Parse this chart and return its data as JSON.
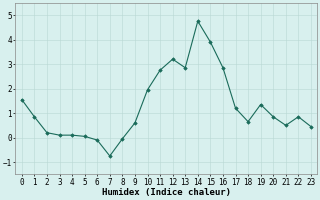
{
  "x": [
    0,
    1,
    2,
    3,
    4,
    5,
    6,
    7,
    8,
    9,
    10,
    11,
    12,
    13,
    14,
    15,
    16,
    17,
    18,
    19,
    20,
    21,
    22,
    23
  ],
  "y": [
    1.55,
    0.85,
    0.2,
    0.1,
    0.1,
    0.05,
    -0.1,
    -0.75,
    -0.05,
    0.6,
    1.95,
    2.75,
    3.2,
    2.85,
    4.75,
    3.9,
    2.85,
    1.2,
    0.65,
    1.35,
    0.85,
    0.5,
    0.85,
    0.45
  ],
  "line_color": "#1a6b5a",
  "marker": "D",
  "marker_size": 1.8,
  "bg_color": "#d8f0ee",
  "grid_color": "#b8d8d4",
  "xlabel": "Humidex (Indice chaleur)",
  "xlabel_fontsize": 6.5,
  "tick_fontsize": 5.5,
  "ylim": [
    -1.5,
    5.5
  ],
  "yticks": [
    -1,
    0,
    1,
    2,
    3,
    4,
    5
  ],
  "xlim": [
    -0.5,
    23.5
  ],
  "xticks": [
    0,
    1,
    2,
    3,
    4,
    5,
    6,
    7,
    8,
    9,
    10,
    11,
    12,
    13,
    14,
    15,
    16,
    17,
    18,
    19,
    20,
    21,
    22,
    23
  ]
}
